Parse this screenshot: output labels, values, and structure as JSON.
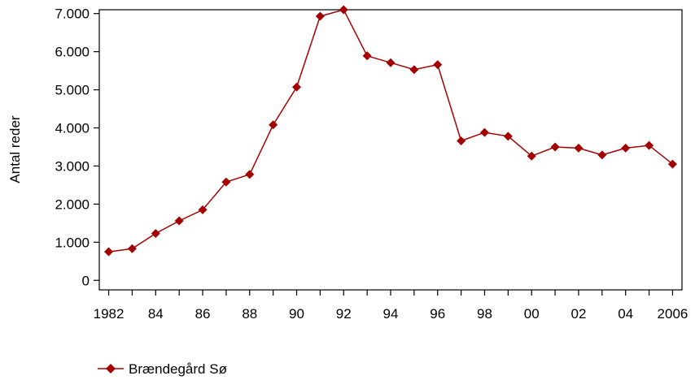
{
  "chart_data": {
    "type": "line",
    "ylabel": "Antal reder",
    "xlabel": "",
    "x": [
      1982,
      1983,
      1984,
      1985,
      1986,
      1987,
      1988,
      1989,
      1990,
      1991,
      1992,
      1993,
      1994,
      1995,
      1996,
      1997,
      1998,
      1999,
      2000,
      2001,
      2002,
      2003,
      2004,
      2005,
      2006
    ],
    "x_tick_values": [
      1982,
      1984,
      1986,
      1988,
      1990,
      1992,
      1994,
      1996,
      1998,
      2000,
      2002,
      2004,
      2006
    ],
    "x_tick_labels": [
      "1982",
      "84",
      "86",
      "88",
      "90",
      "92",
      "94",
      "96",
      "98",
      "00",
      "02",
      "04",
      "2006"
    ],
    "y_tick_values": [
      0,
      1000,
      2000,
      3000,
      4000,
      5000,
      6000,
      7000
    ],
    "y_tick_labels": [
      "0",
      "1.000",
      "2.000",
      "3.000",
      "4.000",
      "5.000",
      "6.000",
      "7.000"
    ],
    "ylim": [
      -250,
      7100
    ],
    "xlim": [
      1981.6,
      2006.4
    ],
    "series": [
      {
        "name": "Brændegård Sø",
        "color": "#a50000",
        "marker": "diamond",
        "values": [
          750,
          830,
          1230,
          1560,
          1850,
          2580,
          2780,
          4080,
          5070,
          6930,
          7100,
          5890,
          5710,
          5530,
          5660,
          3660,
          3880,
          3780,
          3260,
          3500,
          3470,
          3290,
          3470,
          3540,
          3050
        ]
      }
    ],
    "legend_position": "bottom-left",
    "grid": false
  }
}
